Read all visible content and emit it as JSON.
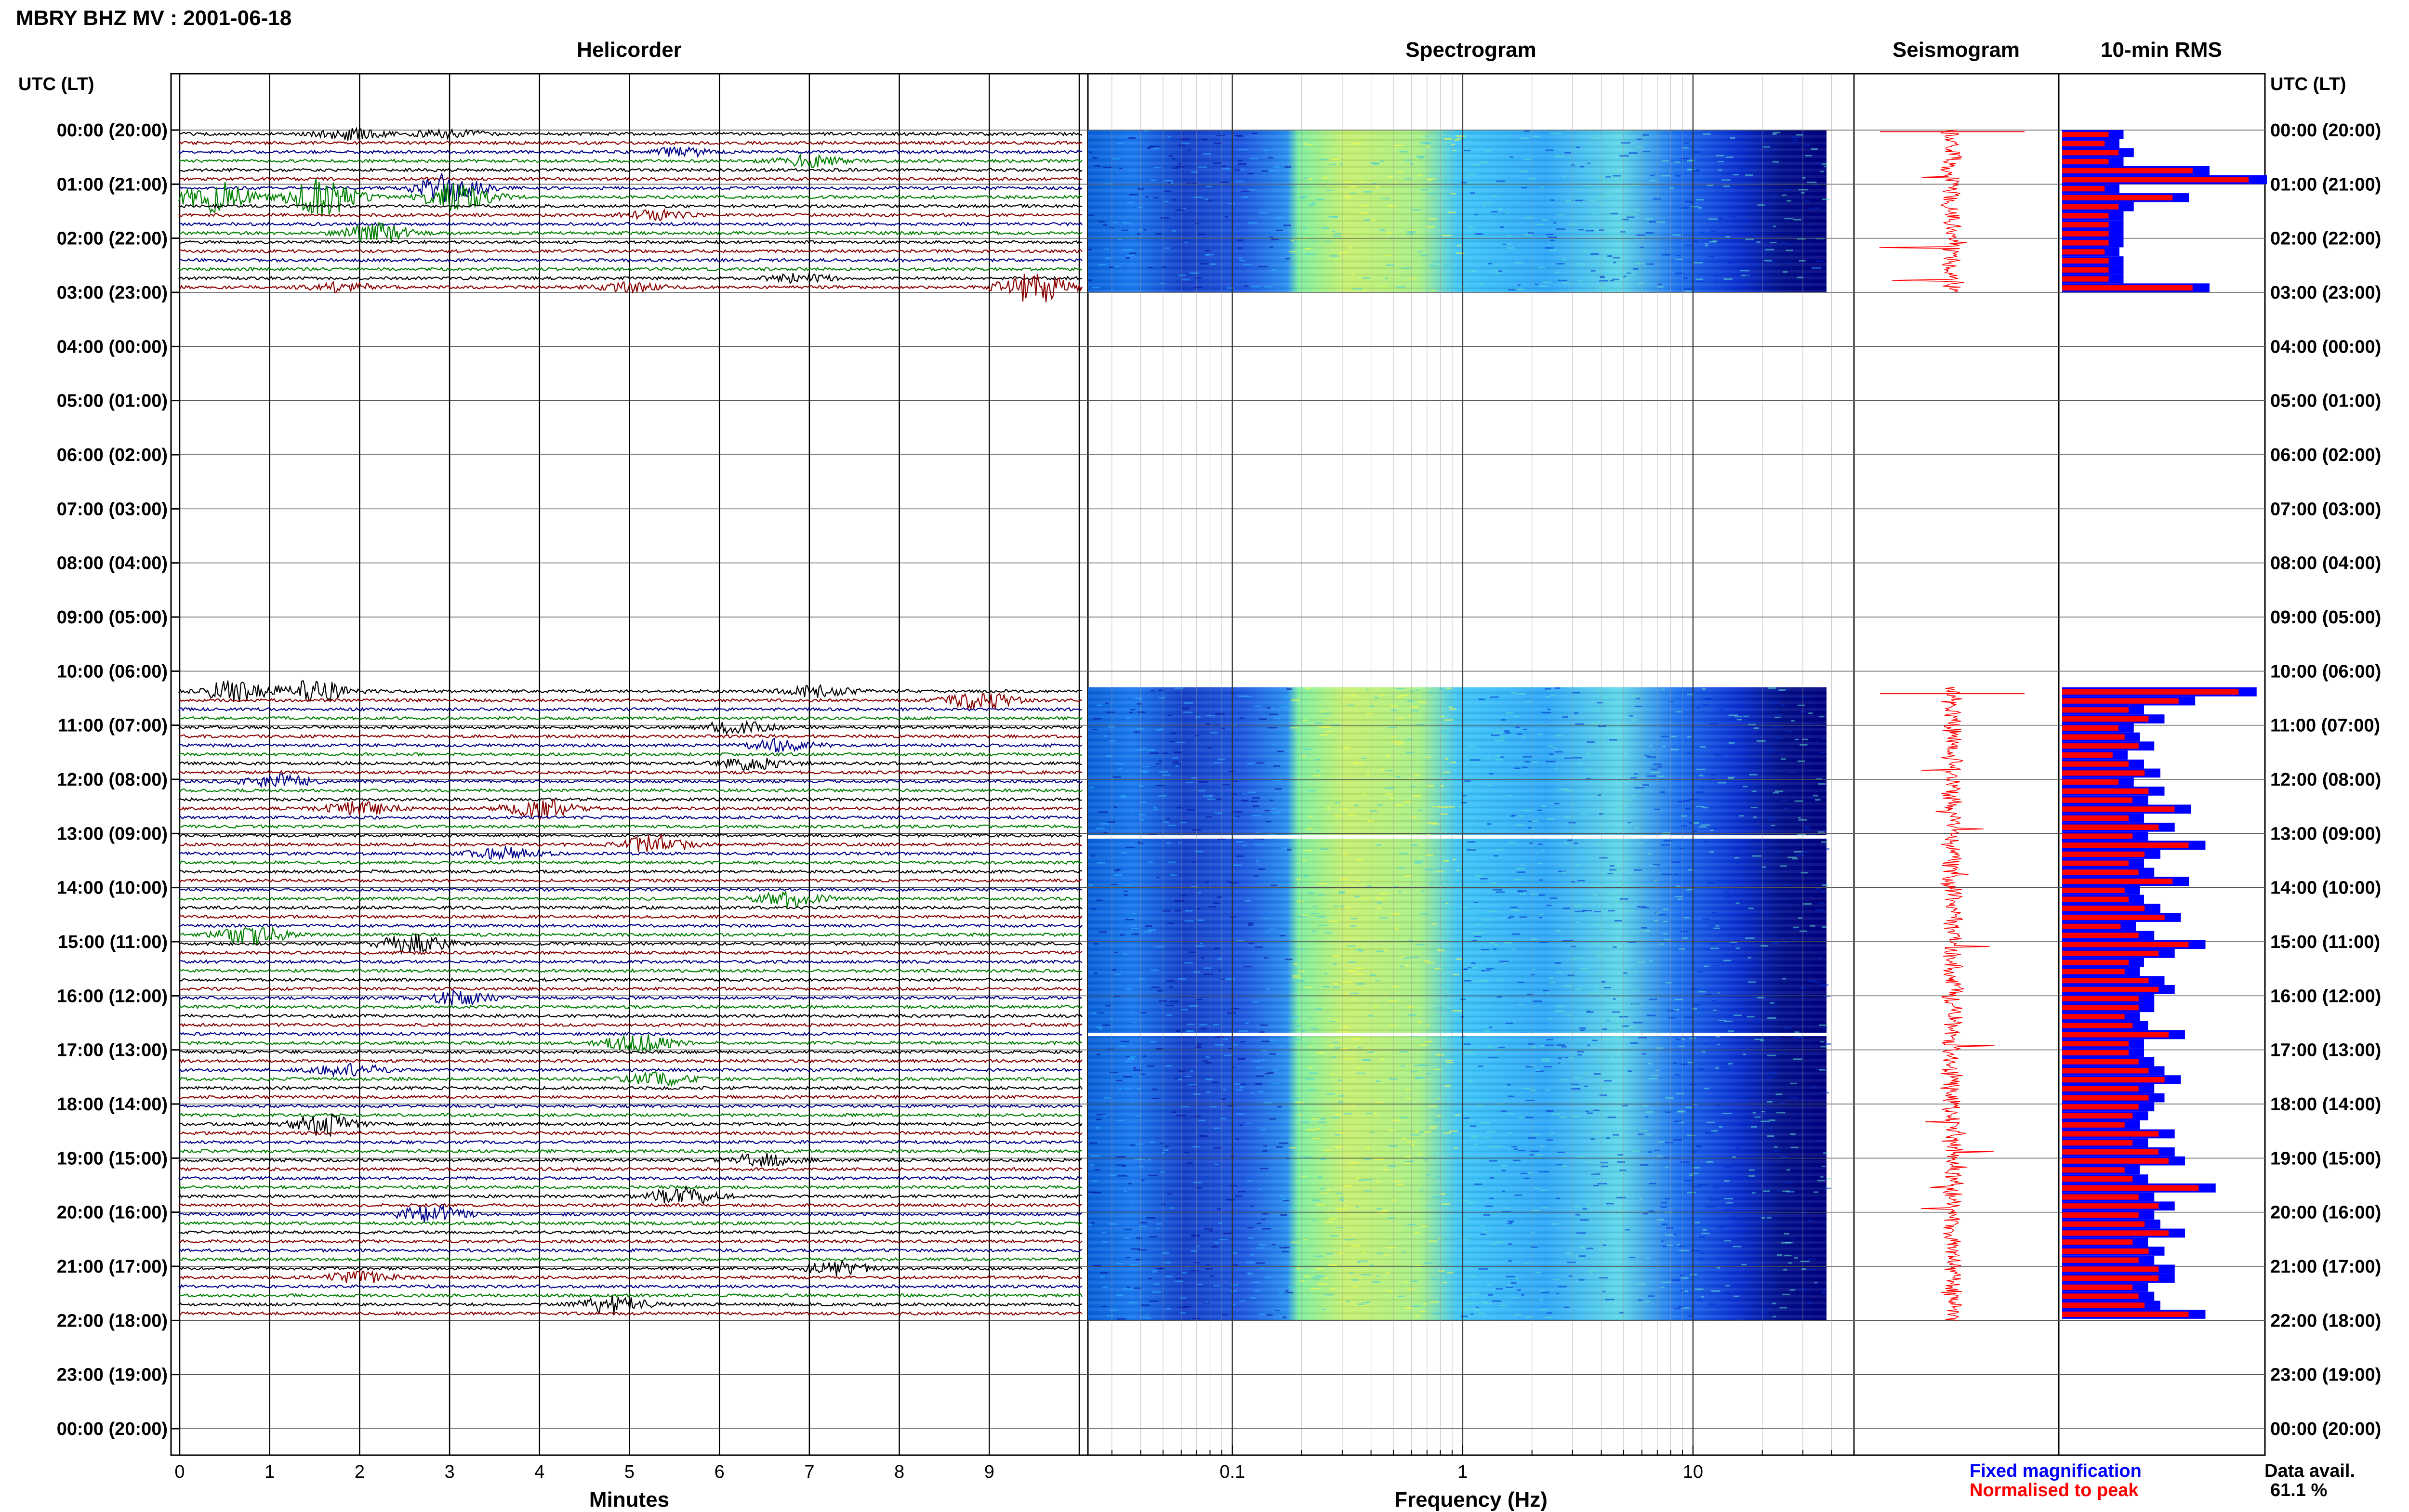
{
  "title": "MBRY BHZ MV : 2001-06-18",
  "panels": {
    "helicorder": "Helicorder",
    "spectrogram": "Spectrogram",
    "seismogram": "Seismogram",
    "rms": "10-min RMS"
  },
  "utc_header_left": "UTC (LT)",
  "utc_header_right": "UTC (LT)",
  "time_labels": [
    "00:00 (20:00)",
    "01:00 (21:00)",
    "02:00 (22:00)",
    "03:00 (23:00)",
    "04:00 (00:00)",
    "05:00 (01:00)",
    "06:00 (02:00)",
    "07:00 (03:00)",
    "08:00 (04:00)",
    "09:00 (05:00)",
    "10:00 (06:00)",
    "11:00 (07:00)",
    "12:00 (08:00)",
    "13:00 (09:00)",
    "14:00 (10:00)",
    "15:00 (11:00)",
    "16:00 (12:00)",
    "17:00 (13:00)",
    "18:00 (14:00)",
    "19:00 (15:00)",
    "20:00 (16:00)",
    "21:00 (17:00)",
    "22:00 (18:00)",
    "23:00 (19:00)",
    "00:00 (20:00)"
  ],
  "legend": {
    "fixed": "Fixed magnification",
    "normalised": "Normalised to peak",
    "fixed_color": "#0000ff",
    "normalised_color": "#ff0000"
  },
  "data_avail_label": "Data avail.",
  "data_avail_value": "61.1 %",
  "chart_data": [
    {
      "type": "line",
      "title": "Helicorder",
      "xlabel": "Minutes",
      "x_ticks": [
        "0",
        "1",
        "2",
        "3",
        "4",
        "5",
        "6",
        "7",
        "8",
        "9"
      ],
      "xlim": [
        0,
        10
      ],
      "trace_colors": [
        "#000000",
        "#8b0000",
        "#00008b",
        "#008000"
      ],
      "data_blocks_utc": [
        [
          0.0,
          3.0
        ],
        [
          10.3,
          22.0
        ]
      ],
      "event_bursts": [
        {
          "hour": 0.0,
          "minute": 1.9,
          "amp": 0.5
        },
        {
          "hour": 0.0,
          "minute": 3.0,
          "amp": 0.4
        },
        {
          "hour": 0.3,
          "minute": 5.6,
          "amp": 0.4
        },
        {
          "hour": 0.5,
          "minute": 7.0,
          "amp": 0.5
        },
        {
          "hour": 1.0,
          "minute": 3.0,
          "amp": 1.3
        },
        {
          "hour": 1.2,
          "minute": 0.4,
          "amp": 1.6
        },
        {
          "hour": 1.2,
          "minute": 1.6,
          "amp": 1.8
        },
        {
          "hour": 1.2,
          "minute": 3.1,
          "amp": 1.4
        },
        {
          "hour": 1.5,
          "minute": 5.3,
          "amp": 0.4
        },
        {
          "hour": 1.8,
          "minute": 2.2,
          "amp": 0.9
        },
        {
          "hour": 2.6,
          "minute": 6.9,
          "amp": 0.4
        },
        {
          "hour": 2.8,
          "minute": 1.8,
          "amp": 0.4
        },
        {
          "hour": 2.8,
          "minute": 5.0,
          "amp": 0.4
        },
        {
          "hour": 2.9,
          "minute": 9.5,
          "amp": 1.5
        },
        {
          "hour": 10.3,
          "minute": 0.6,
          "amp": 1.0
        },
        {
          "hour": 10.3,
          "minute": 1.5,
          "amp": 1.1
        },
        {
          "hour": 10.3,
          "minute": 7.1,
          "amp": 0.5
        },
        {
          "hour": 10.5,
          "minute": 8.9,
          "amp": 0.8
        },
        {
          "hour": 11.0,
          "minute": 6.2,
          "amp": 0.6
        },
        {
          "hour": 11.3,
          "minute": 6.7,
          "amp": 0.6
        },
        {
          "hour": 11.6,
          "minute": 6.4,
          "amp": 0.6
        },
        {
          "hour": 11.9,
          "minute": 1.1,
          "amp": 0.6
        },
        {
          "hour": 12.5,
          "minute": 2.0,
          "amp": 0.6
        },
        {
          "hour": 12.5,
          "minute": 4.0,
          "amp": 0.9
        },
        {
          "hour": 13.1,
          "minute": 5.3,
          "amp": 0.9
        },
        {
          "hour": 13.3,
          "minute": 3.6,
          "amp": 0.5
        },
        {
          "hour": 14.1,
          "minute": 6.8,
          "amp": 0.7
        },
        {
          "hour": 14.8,
          "minute": 0.8,
          "amp": 0.9
        },
        {
          "hour": 14.9,
          "minute": 2.6,
          "amp": 0.9
        },
        {
          "hour": 15.9,
          "minute": 3.1,
          "amp": 0.6
        },
        {
          "hour": 16.8,
          "minute": 5.1,
          "amp": 0.8
        },
        {
          "hour": 17.3,
          "minute": 1.9,
          "amp": 0.6
        },
        {
          "hour": 17.5,
          "minute": 5.3,
          "amp": 0.6
        },
        {
          "hour": 18.3,
          "minute": 1.6,
          "amp": 1.0
        },
        {
          "hour": 18.9,
          "minute": 6.5,
          "amp": 0.6
        },
        {
          "hour": 19.6,
          "minute": 5.6,
          "amp": 0.8
        },
        {
          "hour": 19.9,
          "minute": 2.8,
          "amp": 0.8
        },
        {
          "hour": 21.0,
          "minute": 7.3,
          "amp": 0.6
        },
        {
          "hour": 21.2,
          "minute": 2.0,
          "amp": 0.5
        },
        {
          "hour": 21.6,
          "minute": 4.8,
          "amp": 0.9
        }
      ]
    },
    {
      "type": "heatmap",
      "title": "Spectrogram",
      "xlabel": "Frequency (Hz)",
      "x_scale": "log",
      "x_ticks": [
        "0.1",
        "1",
        "10"
      ],
      "xlim": [
        0.025,
        50
      ],
      "data_blocks_utc": [
        [
          0.0,
          3.0
        ],
        [
          10.3,
          22.0
        ]
      ],
      "max_freq_hz": 38,
      "dropouts_utc": [
        13.06,
        16.71
      ],
      "colormap": [
        "#00007f",
        "#0000ff",
        "#0080ff",
        "#00d0ff",
        "#40ffc0",
        "#a0ff60",
        "#ffff00"
      ]
    },
    {
      "type": "line",
      "title": "Seismogram",
      "color": "#ff0000",
      "data_blocks_utc": [
        [
          0.0,
          3.0
        ],
        [
          10.3,
          22.0
        ]
      ]
    },
    {
      "type": "bar",
      "title": "10-min RMS",
      "series": [
        {
          "name": "Fixed magnification",
          "color": "#0000ff"
        },
        {
          "name": "Normalised to peak",
          "color": "#ff0000"
        }
      ],
      "interval_hours": 0.1667,
      "blocks": [
        {
          "start_hour": 0.0,
          "values": [
            0.3,
            0.28,
            0.35,
            0.3,
            0.72,
            1.0,
            0.28,
            0.62,
            0.35,
            0.3,
            0.3,
            0.3,
            0.3,
            0.28,
            0.3,
            0.3,
            0.3,
            0.72
          ]
        },
        {
          "start_hour": 10.3,
          "values": [
            0.95,
            0.65,
            0.4,
            0.5,
            0.35,
            0.38,
            0.45,
            0.32,
            0.4,
            0.48,
            0.35,
            0.5,
            0.42,
            0.63,
            0.4,
            0.55,
            0.42,
            0.7,
            0.48,
            0.4,
            0.45,
            0.62,
            0.38,
            0.4,
            0.48,
            0.58,
            0.36,
            0.45,
            0.7,
            0.55,
            0.4,
            0.38,
            0.5,
            0.55,
            0.45,
            0.45,
            0.38,
            0.42,
            0.6,
            0.4,
            0.4,
            0.45,
            0.5,
            0.58,
            0.45,
            0.5,
            0.45,
            0.42,
            0.38,
            0.55,
            0.42,
            0.55,
            0.6,
            0.38,
            0.42,
            0.75,
            0.45,
            0.55,
            0.45,
            0.48,
            0.6,
            0.42,
            0.5,
            0.45,
            0.55,
            0.55,
            0.42,
            0.45,
            0.48,
            0.7
          ]
        }
      ]
    }
  ]
}
